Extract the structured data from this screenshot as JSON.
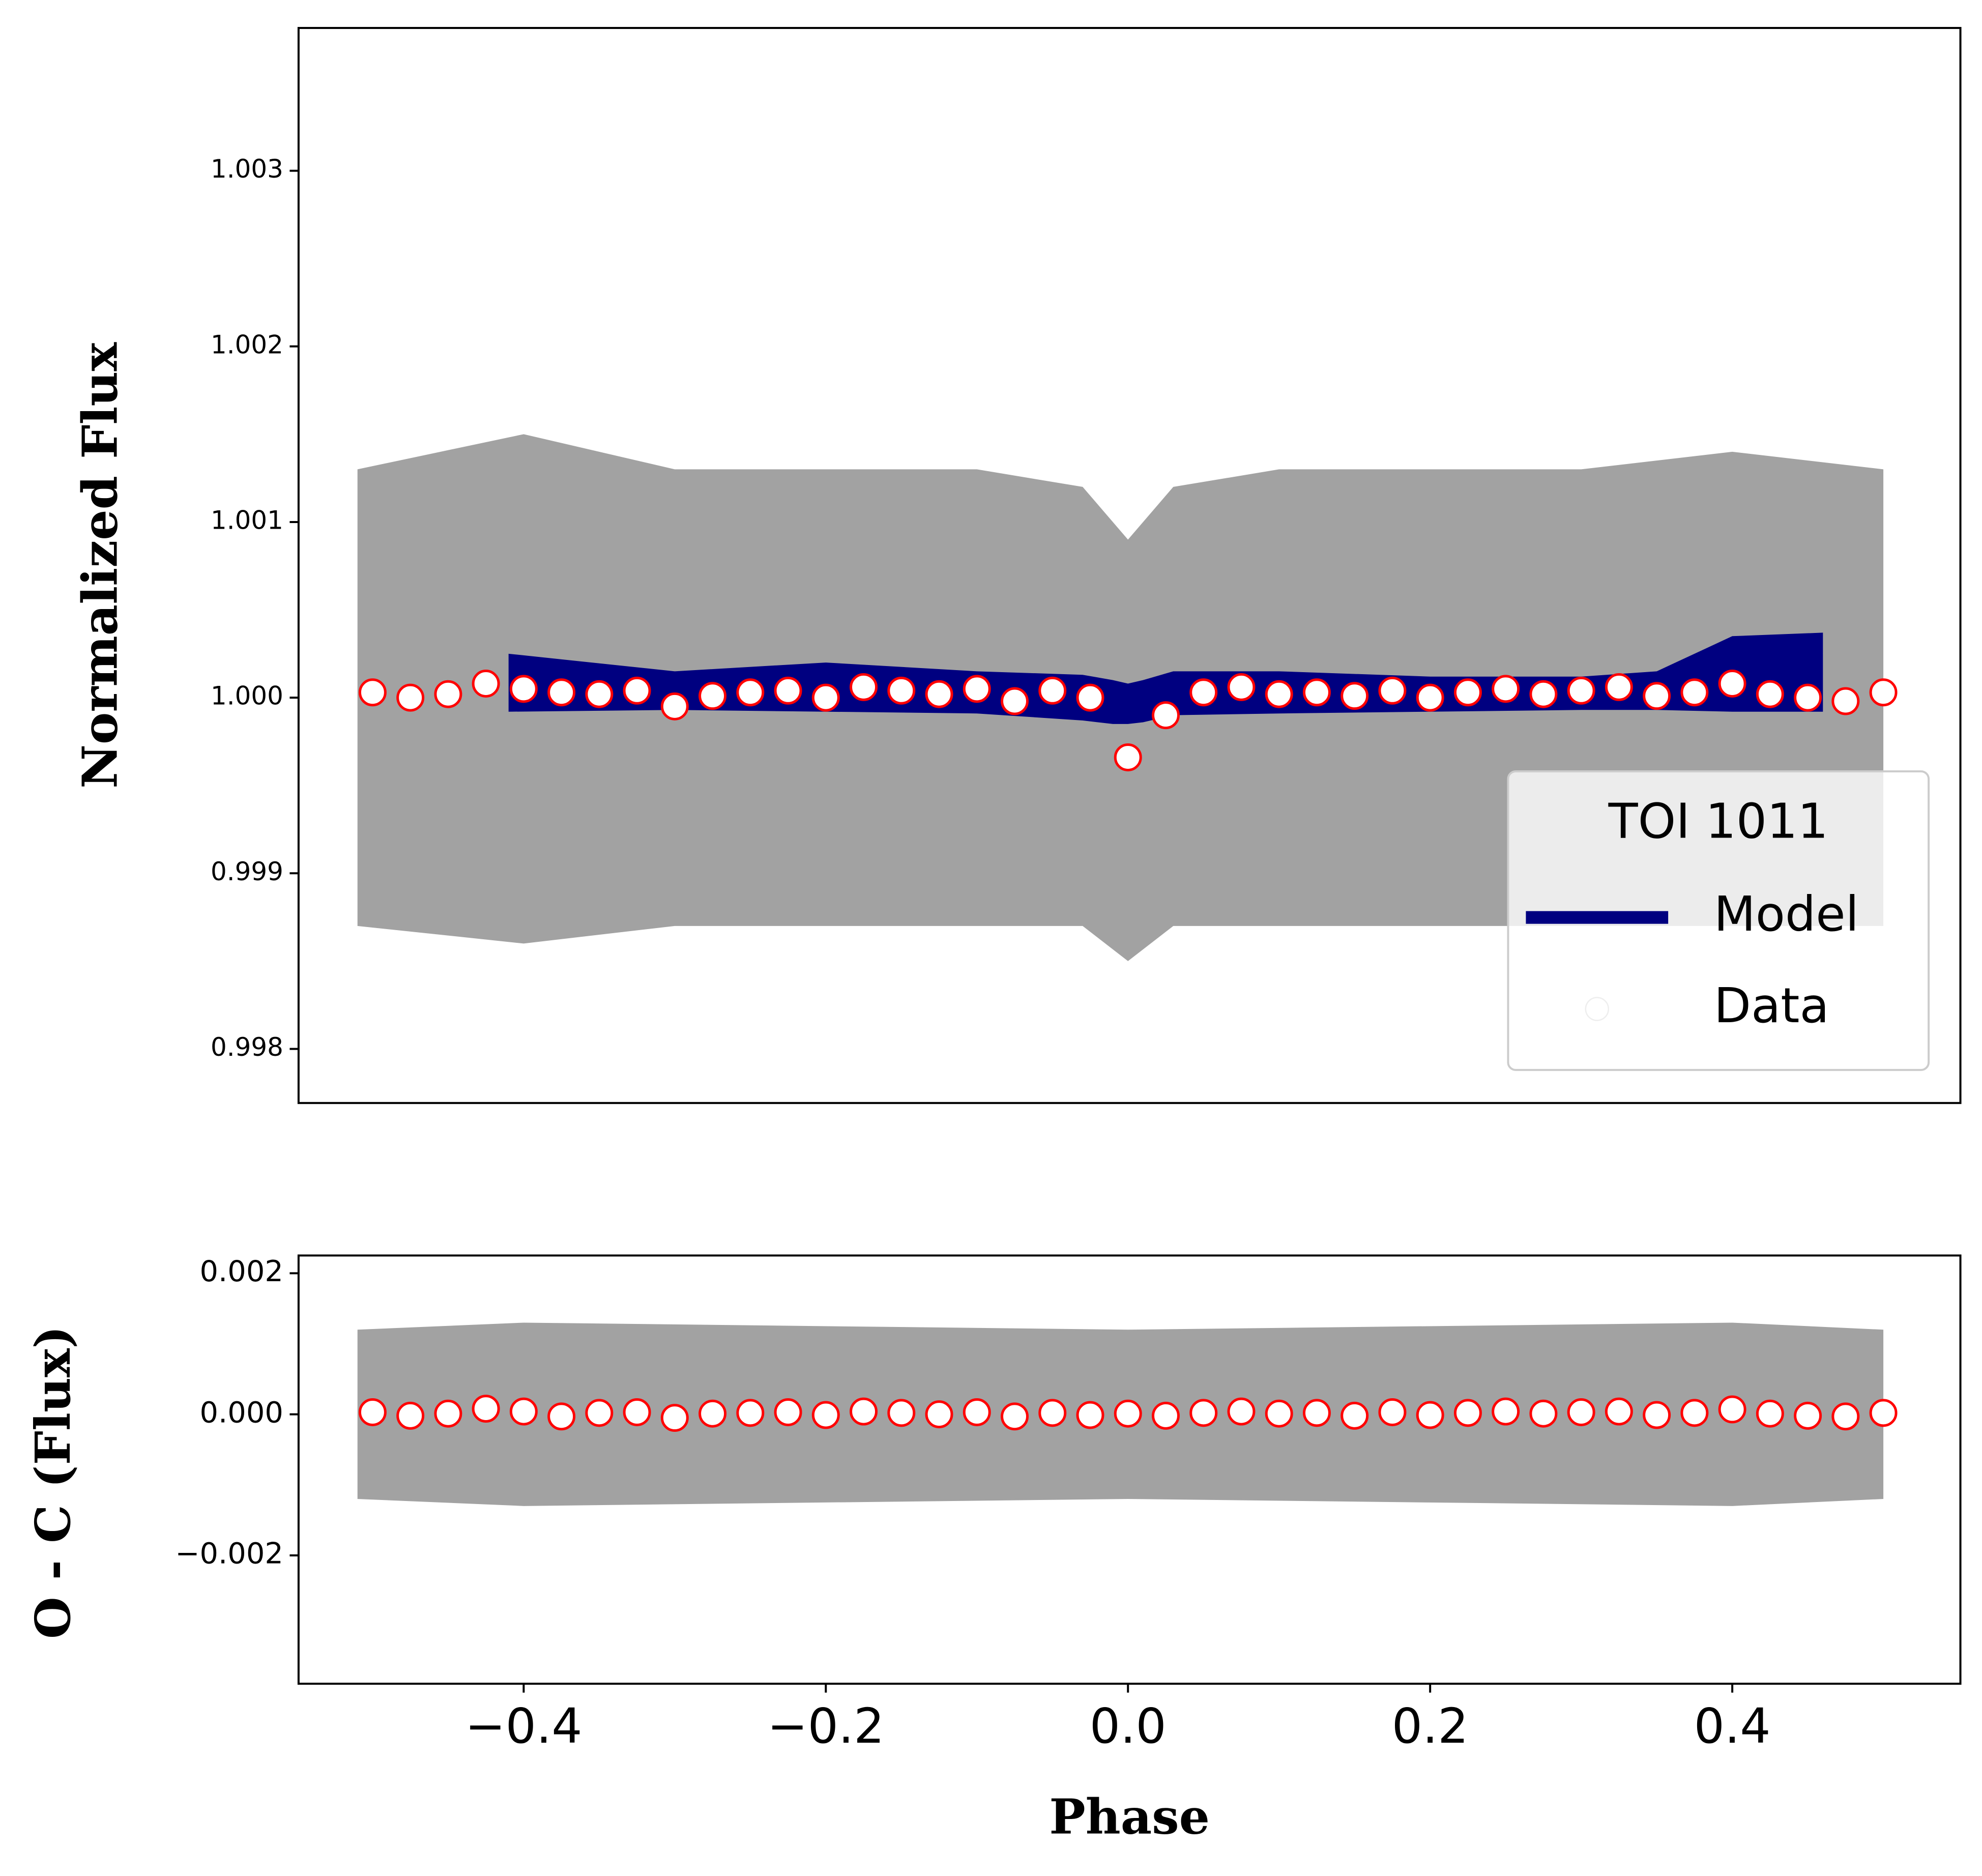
{
  "chart_data": [
    {
      "type": "scatter",
      "ylabel": "Normalized Flux",
      "xlim": [
        -0.549,
        0.551
      ],
      "ylim": [
        0.997692,
        1.003813
      ],
      "yticks": [
        {
          "value": 0.998,
          "label": "0.998"
        },
        0.999,
        {
          "value": 1.0,
          "label": "1.000"
        },
        1.001,
        1.002,
        1.003
      ],
      "legend": "lower right",
      "legend_title": "TOI 1011",
      "series": [
        {
          "name": "Model",
          "color": "#000080",
          "x": [
            -0.41,
            -0.3,
            -0.2,
            -0.1,
            -0.03,
            -0.01,
            0,
            0.01,
            0.03,
            0.1,
            0.2,
            0.3,
            0.35,
            0.4,
            0.46
          ],
          "high": [
            1.00025,
            1.00015,
            1.0002,
            1.00015,
            1.00013,
            1.0001,
            1.00008,
            1.0001,
            1.00015,
            1.00015,
            1.00012,
            1.00012,
            1.00015,
            1.00035,
            1.00037
          ],
          "low": [
            0.99992,
            0.99993,
            0.99992,
            0.99991,
            0.99987,
            0.99985,
            0.99985,
            0.99986,
            0.9999,
            0.99991,
            0.99992,
            0.99993,
            0.99993,
            0.99992,
            0.99992
          ]
        },
        {
          "name": "Data",
          "color": "#555555",
          "x": [
            -0.51,
            -0.4,
            -0.3,
            -0.2,
            -0.1,
            -0.03,
            0,
            0.03,
            0.1,
            0.2,
            0.3,
            0.4,
            0.5
          ],
          "high": [
            1.0013,
            1.0015,
            1.0013,
            1.0013,
            1.0013,
            1.0012,
            1.0009,
            1.0012,
            1.0013,
            1.0013,
            1.0013,
            1.0014,
            1.0013
          ],
          "low": [
            0.9987,
            0.9986,
            0.9987,
            0.9987,
            0.9987,
            0.9987,
            0.9985,
            0.9987,
            0.9987,
            0.9987,
            0.9987,
            0.9987,
            0.9987
          ]
        }
      ],
      "binned": {
        "color": "#ff0000",
        "x": [
          -0.5,
          -0.475,
          -0.45,
          -0.425,
          -0.4,
          -0.375,
          -0.35,
          -0.325,
          -0.3,
          -0.275,
          -0.25,
          -0.225,
          -0.2,
          -0.175,
          -0.15,
          -0.125,
          -0.1,
          -0.075,
          -0.05,
          -0.025,
          0,
          0.025,
          0.05,
          0.075,
          0.1,
          0.125,
          0.15,
          0.175,
          0.2,
          0.225,
          0.25,
          0.275,
          0.3,
          0.325,
          0.35,
          0.375,
          0.4,
          0.425,
          0.45,
          0.475,
          0.5
        ],
        "values": [
          1.00003,
          1.0,
          1.00002,
          1.00008,
          1.00005,
          1.00003,
          1.00002,
          1.00004,
          0.99995,
          1.00001,
          1.00003,
          1.00004,
          1.0,
          1.00006,
          1.00004,
          1.00002,
          1.00005,
          0.99998,
          1.00004,
          1.0,
          0.99966,
          0.9999,
          1.00003,
          1.00006,
          1.00002,
          1.00003,
          1.00001,
          1.00004,
          1.0,
          1.00003,
          1.00005,
          1.00002,
          1.00004,
          1.00006,
          1.00001,
          1.00003,
          1.00008,
          1.00002,
          1.0,
          0.99998,
          1.00003
        ]
      }
    },
    {
      "type": "scatter",
      "ylabel": "O - C (Flux)",
      "xlabel": "Phase",
      "xlim": [
        -0.549,
        0.551
      ],
      "ylim": [
        -0.00382,
        0.002252
      ],
      "xticks": [
        {
          "value": -0.4,
          "label": "−0.4"
        },
        {
          "value": -0.2,
          "label": "−0.2"
        },
        {
          "value": 0.0,
          "label": "0.0"
        },
        0.2,
        0.4
      ],
      "yticks": [
        {
          "value": -0.002,
          "label": "−0.002"
        },
        {
          "value": 0.0,
          "label": "0.000"
        },
        0.002
      ],
      "series": [
        {
          "color": "#555555",
          "x": [
            -0.51,
            -0.4,
            0,
            0.4,
            0.5
          ],
          "high": [
            0.0012,
            0.0013,
            0.0012,
            0.0013,
            0.0012
          ],
          "low": [
            -0.0012,
            -0.0013,
            -0.0012,
            -0.0013,
            -0.0012
          ]
        }
      ],
      "binned": {
        "color": "#ff0000",
        "x": [
          -0.5,
          -0.475,
          -0.45,
          -0.425,
          -0.4,
          -0.375,
          -0.35,
          -0.325,
          -0.3,
          -0.275,
          -0.25,
          -0.225,
          -0.2,
          -0.175,
          -0.15,
          -0.125,
          -0.1,
          -0.075,
          -0.05,
          -0.025,
          0,
          0.025,
          0.05,
          0.075,
          0.1,
          0.125,
          0.15,
          0.175,
          0.2,
          0.225,
          0.25,
          0.275,
          0.3,
          0.325,
          0.35,
          0.375,
          0.4,
          0.425,
          0.45,
          0.475,
          0.5
        ],
        "values": [
          3e-05,
          -2e-05,
          1e-05,
          8e-05,
          4e-05,
          -3e-05,
          2e-05,
          3e-05,
          -5e-05,
          1e-05,
          2e-05,
          3e-05,
          -1e-05,
          4e-05,
          2e-05,
          0.0,
          3e-05,
          -3e-05,
          2e-05,
          -1e-05,
          1e-05,
          -2e-05,
          2e-05,
          4e-05,
          1e-05,
          2e-05,
          -2e-05,
          3e-05,
          -1e-05,
          2e-05,
          4e-05,
          1e-05,
          3e-05,
          4e-05,
          -1e-05,
          2e-05,
          7e-05,
          1e-05,
          -2e-05,
          -3e-05,
          2e-05
        ]
      }
    }
  ]
}
